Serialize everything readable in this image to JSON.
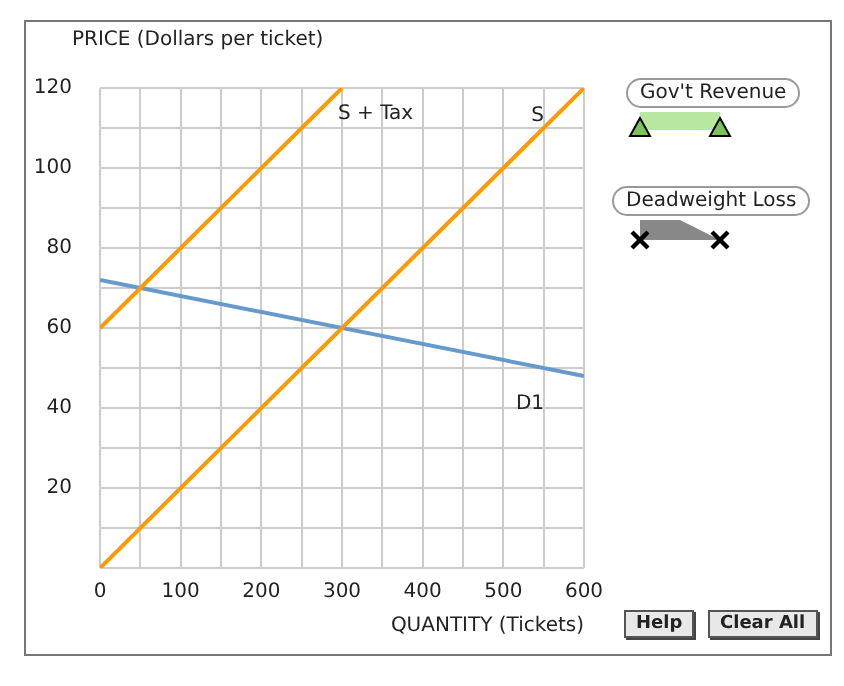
{
  "chart_data": {
    "type": "line",
    "ylabel": "PRICE (Dollars per ticket)",
    "xlabel": "QUANTITY (Tickets)",
    "series": [
      {
        "name": "S + Tax",
        "color": "#ff9900",
        "x": [
          0,
          300
        ],
        "values": [
          60,
          120
        ]
      },
      {
        "name": "S",
        "color": "#ff9900",
        "x": [
          0,
          600
        ],
        "values": [
          0,
          120
        ]
      },
      {
        "name": "D1",
        "color": "#6699cc",
        "x": [
          0,
          600
        ],
        "values": [
          72,
          48
        ]
      }
    ],
    "xlim": [
      0,
      600
    ],
    "ylim": [
      0,
      120
    ],
    "xticks": [
      0,
      {
        "value": 50,
        "label": null
      },
      100,
      {
        "value": 150,
        "label": null
      },
      200,
      {
        "value": 250,
        "label": null
      },
      300,
      {
        "value": 350,
        "label": null
      },
      400,
      {
        "value": 450,
        "label": null
      },
      500,
      {
        "value": 550,
        "label": null
      },
      600
    ],
    "yticks": [
      {
        "value": 0,
        "label": null
      },
      {
        "value": 10,
        "label": null
      },
      20,
      {
        "value": 30,
        "label": null
      },
      40,
      {
        "value": 50,
        "label": null
      },
      60,
      {
        "value": 70,
        "label": null
      },
      80,
      {
        "value": 90,
        "label": null
      },
      100,
      {
        "value": 110,
        "label": null
      },
      120
    ],
    "grid": true,
    "legend": false,
    "marker": "none",
    "line_style": "solid",
    "annotations": [
      "Gov't Revenue",
      "Deadweight Loss",
      "Help",
      "Clear All"
    ]
  }
}
